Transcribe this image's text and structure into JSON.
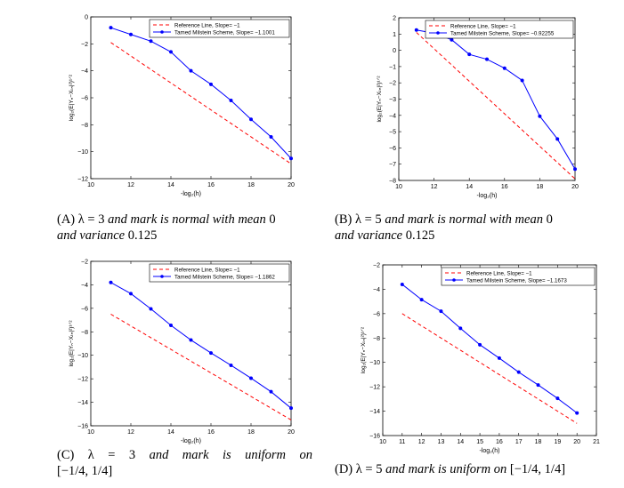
{
  "chart_data": [
    {
      "type": "line",
      "xlim": [
        10,
        20
      ],
      "ylim": [
        -12,
        0
      ],
      "xticks": [
        10,
        12,
        14,
        16,
        18,
        20
      ],
      "yticks": [
        0,
        -2,
        -4,
        -6,
        -8,
        -10,
        -12
      ],
      "xlabel": "-log₂(h)",
      "ylabel": "log₂(E|Yₙ−Xₜₙ|²)¹ᐟ²",
      "legend_position": "top-right",
      "series": [
        {
          "name": "Reference Line, Slope= −1",
          "style": "dashed",
          "color": "#ff0000",
          "x": [
            11,
            20
          ],
          "y": [
            -1.9,
            -10.9
          ]
        },
        {
          "name": "Tamed Milstein Scheme, Slope= −1.1001",
          "style": "solid-marker",
          "color": "#0000ff",
          "x": [
            11,
            12,
            13,
            14,
            15,
            16,
            17,
            18,
            19,
            20
          ],
          "y": [
            -0.8,
            -1.3,
            -1.8,
            -2.6,
            -4.0,
            -5.0,
            -6.2,
            -7.6,
            -8.9,
            -10.5
          ]
        }
      ]
    },
    {
      "type": "line",
      "xlim": [
        10,
        20
      ],
      "ylim": [
        -8,
        2
      ],
      "xticks": [
        10,
        12,
        14,
        16,
        18,
        20
      ],
      "yticks": [
        2,
        1,
        0,
        -1,
        -2,
        -3,
        -4,
        -5,
        -6,
        -7,
        -8
      ],
      "xlabel": "-log₂(h)",
      "ylabel": "log₂(E|Yₙ−Xₜₙ|²)¹ᐟ²",
      "legend_position": "top-right",
      "series": [
        {
          "name": "Reference Line, Slope= −1",
          "style": "dashed",
          "color": "#ff0000",
          "x": [
            11,
            20
          ],
          "y": [
            1.1,
            -7.9
          ]
        },
        {
          "name": "Tamed Milstein Scheme, Slope= −0.92255",
          "style": "solid-marker",
          "color": "#0000ff",
          "x": [
            11,
            12,
            13,
            14,
            15,
            16,
            17,
            18,
            19,
            20
          ],
          "y": [
            1.25,
            1.05,
            0.65,
            -0.25,
            -0.55,
            -1.1,
            -1.85,
            -4.05,
            -5.45,
            -7.3
          ]
        }
      ]
    },
    {
      "type": "line",
      "xlim": [
        10,
        20
      ],
      "ylim": [
        -16,
        -2
      ],
      "xticks": [
        10,
        12,
        14,
        16,
        18,
        20
      ],
      "yticks": [
        -2,
        -4,
        -6,
        -8,
        -10,
        -12,
        -14,
        -16
      ],
      "xlabel": "-log₂(h)",
      "ylabel": "log₂(E|Yₙ−Xₜₙ|²)¹ᐟ²",
      "legend_position": "top-right",
      "series": [
        {
          "name": "Reference Line, Slope= −1",
          "style": "dashed",
          "color": "#ff0000",
          "x": [
            11,
            20
          ],
          "y": [
            -6.5,
            -15.5
          ]
        },
        {
          "name": "Tamed Milstein Scheme, Slope= −1.1862",
          "style": "solid-marker",
          "color": "#0000ff",
          "x": [
            11,
            12,
            13,
            14,
            15,
            16,
            17,
            18,
            19,
            20
          ],
          "y": [
            -3.8,
            -4.75,
            -6.05,
            -7.45,
            -8.7,
            -9.8,
            -10.85,
            -11.95,
            -13.1,
            -14.5
          ]
        }
      ]
    },
    {
      "type": "line",
      "xlim": [
        10,
        21
      ],
      "ylim": [
        -16,
        -2
      ],
      "xticks": [
        10,
        11,
        12,
        13,
        14,
        15,
        16,
        17,
        18,
        19,
        20,
        21
      ],
      "yticks": [
        -2,
        -4,
        -6,
        -8,
        -10,
        -12,
        -14,
        -16
      ],
      "xlabel": "-log₂(h)",
      "ylabel": "log₂(E|Yₙ−Xₜₙ|²)¹ᐟ²",
      "legend_position": "top-right",
      "series": [
        {
          "name": "Reference Line, Slope= −1",
          "style": "dashed",
          "color": "#ff0000",
          "x": [
            11,
            20
          ],
          "y": [
            -6.0,
            -15.0
          ]
        },
        {
          "name": "Tamed Milstein Scheme, Slope= −1.1673",
          "style": "solid-marker",
          "color": "#0000ff",
          "x": [
            11,
            12,
            13,
            14,
            15,
            16,
            17,
            18,
            19,
            20
          ],
          "y": [
            -3.6,
            -4.85,
            -5.8,
            -7.2,
            -8.55,
            -9.65,
            -10.8,
            -11.85,
            -12.95,
            -14.15
          ]
        }
      ]
    }
  ],
  "captions": [
    {
      "label": "(A)",
      "prefix": "λ = 3 ",
      "italic1": "and mark is normal with mean",
      "num1": " 0",
      "line2_italic": "and variance",
      "line2_num": " 0.125"
    },
    {
      "label": "(B)",
      "prefix": "λ = 5 ",
      "italic1": "and mark is normal with mean",
      "num1": " 0",
      "line2_italic": "and variance",
      "line2_num": " 0.125"
    },
    {
      "label": "(C)",
      "lambda": "λ",
      "eq": "=",
      "val": "3",
      "w1": "and",
      "w2": "mark",
      "w3": "is",
      "w4": "uniform",
      "w5": "on",
      "line2": "[−1/4, 1/4]"
    },
    {
      "label": "(D)",
      "prefix": "λ = 5 ",
      "italic1": "and mark is uniform on",
      "tail": " [−1/4, 1/4]"
    }
  ]
}
